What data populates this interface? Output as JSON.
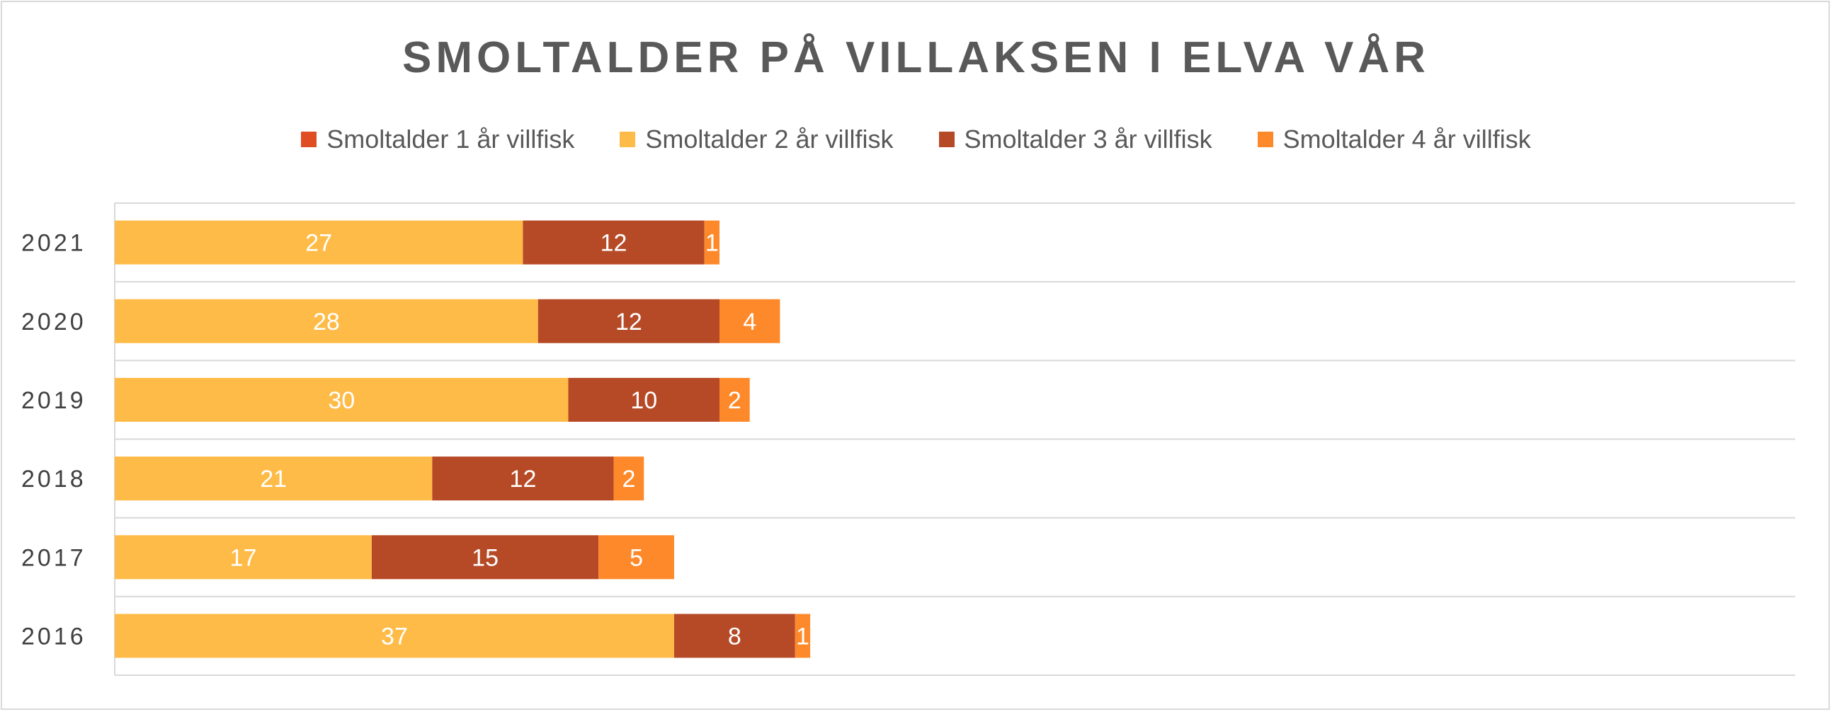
{
  "chart_data": {
    "type": "bar",
    "orientation": "horizontal",
    "stacked": true,
    "title": "SMOLTALDER PÅ VILLAKSEN I ELVA VÅR",
    "xlabel": "",
    "ylabel": "",
    "categories": [
      "2021",
      "2020",
      "2019",
      "2018",
      "2017",
      "2016"
    ],
    "series": [
      {
        "name": "Smoltalder 1 år villfisk",
        "color": "#e14d22",
        "values": [
          0,
          0,
          0,
          0,
          0,
          0
        ]
      },
      {
        "name": "Smoltalder 2 år villfisk",
        "color": "#ffbb47",
        "values": [
          27,
          28,
          30,
          21,
          17,
          37
        ]
      },
      {
        "name": "Smoltalder 3 år villfisk",
        "color": "#b64a27",
        "values": [
          12,
          12,
          10,
          12,
          15,
          8
        ]
      },
      {
        "name": "Smoltalder 4 år villfisk",
        "color": "#fe892a",
        "values": [
          1,
          4,
          2,
          2,
          5,
          1
        ]
      }
    ],
    "xlim": [
      0,
      50
    ],
    "legend_position": "top",
    "grid": "horizontal-category-lines",
    "data_labels": true
  }
}
